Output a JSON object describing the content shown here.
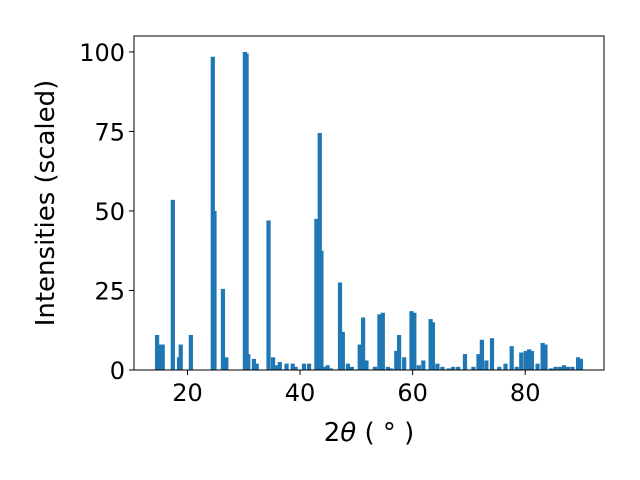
{
  "chart_data": {
    "type": "bar",
    "xlabel_main": "2",
    "xlabel_theta": "θ",
    "xlabel_unit": " ( ° )",
    "ylabel": "Intensities (scaled)",
    "xlim": [
      10.5,
      94
    ],
    "ylim": [
      0,
      105
    ],
    "bar_color": "#1f77b4",
    "bar_width": 0.75,
    "xticks": [
      20,
      40,
      60,
      80
    ],
    "yticks": [
      0,
      25,
      50,
      75,
      100
    ],
    "series": [
      {
        "x": [
          14.6,
          15.2,
          15.6,
          17.4,
          18.5,
          18.8,
          20.6,
          24.5,
          24.8,
          26.3,
          26.9,
          30.2,
          30.5,
          30.8,
          31.8,
          32.3,
          34.4,
          35.2,
          35.7,
          36.4,
          37.6,
          38.7,
          39.2,
          40.7,
          41.6,
          42.9,
          43.5,
          43.8,
          44.3,
          44.9,
          45.5,
          47.1,
          47.6,
          48.5,
          49.2,
          50.6,
          51.2,
          51.8,
          53.3,
          54.1,
          54.7,
          55.6,
          56.2,
          57.1,
          57.6,
          58.5,
          59.8,
          60.3,
          61.1,
          61.9,
          63.2,
          63.6,
          64.4,
          65.3,
          66.4,
          67.2,
          68.1,
          69.3,
          70.8,
          71.7,
          72.3,
          73.1,
          74.1,
          75.4,
          76.5,
          77.6,
          78.5,
          79.3,
          80.1,
          80.7,
          81.2,
          82.2,
          83.1,
          83.6,
          84.6,
          85.4,
          86.2,
          86.9,
          87.6,
          88.4,
          89.4,
          89.9
        ],
        "values": [
          11,
          8,
          8,
          53.5,
          4,
          8,
          11,
          98.5,
          50,
          25.5,
          4,
          100,
          99.5,
          5,
          3.5,
          2,
          47,
          4,
          1.5,
          2.5,
          2,
          2,
          1,
          2,
          2,
          47.5,
          74.5,
          37.5,
          1,
          1.5,
          0.5,
          27.5,
          12,
          2,
          1,
          8,
          16.5,
          3,
          1,
          17.5,
          18,
          1,
          0.5,
          6,
          11,
          4,
          18.5,
          18,
          1.5,
          3,
          16,
          15,
          2,
          1,
          0.5,
          1,
          1,
          5,
          1,
          5,
          9.5,
          3,
          10,
          1,
          2,
          7.5,
          1,
          5.5,
          6,
          6.5,
          6,
          2,
          8.5,
          8,
          0.5,
          1,
          1,
          1.5,
          1,
          1,
          4,
          3.5
        ]
      }
    ]
  }
}
